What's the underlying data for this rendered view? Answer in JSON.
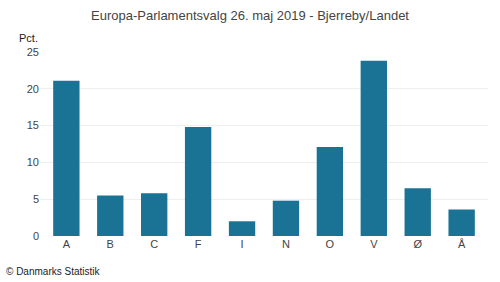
{
  "chart_data": {
    "type": "bar",
    "title": "Europa-Parlamentsvalg 26. maj 2019 - Bjerreby/Landet",
    "categories": [
      "A",
      "B",
      "C",
      "F",
      "I",
      "N",
      "O",
      "V",
      "Ø",
      "Å"
    ],
    "values": [
      21.1,
      5.5,
      5.8,
      14.8,
      2.0,
      4.8,
      12.1,
      23.8,
      6.5,
      3.6
    ],
    "color": "#1a7294",
    "ylabel": "Pct.",
    "ylim": [
      0,
      25
    ],
    "yticks": [
      0,
      5,
      10,
      15,
      20,
      25
    ],
    "grid": true,
    "annotations": [
      "© Danmarks Statistik"
    ]
  }
}
